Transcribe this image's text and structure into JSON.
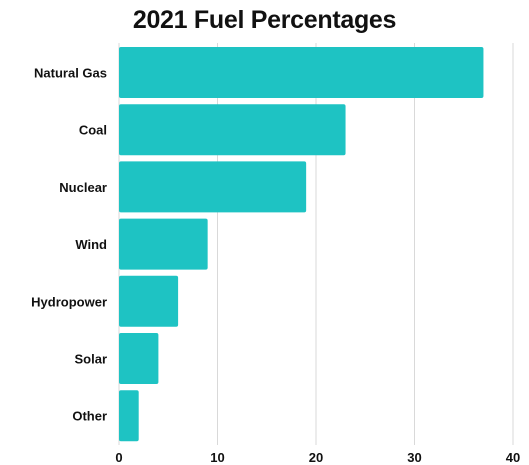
{
  "chart_data": {
    "type": "bar",
    "orientation": "horizontal",
    "title": "2021 Fuel Percentages",
    "categories": [
      "Natural Gas",
      "Coal",
      "Nuclear",
      "Wind",
      "Hydropower",
      "Solar",
      "Other"
    ],
    "values": [
      37,
      23,
      19,
      9,
      6,
      4,
      2
    ],
    "xlim": [
      0,
      40
    ],
    "xticks": [
      0,
      10,
      20,
      30,
      40
    ],
    "xlabel": "",
    "ylabel": "",
    "grid": "vertical",
    "bar_color": "#1ec3c3",
    "legend": "none"
  }
}
